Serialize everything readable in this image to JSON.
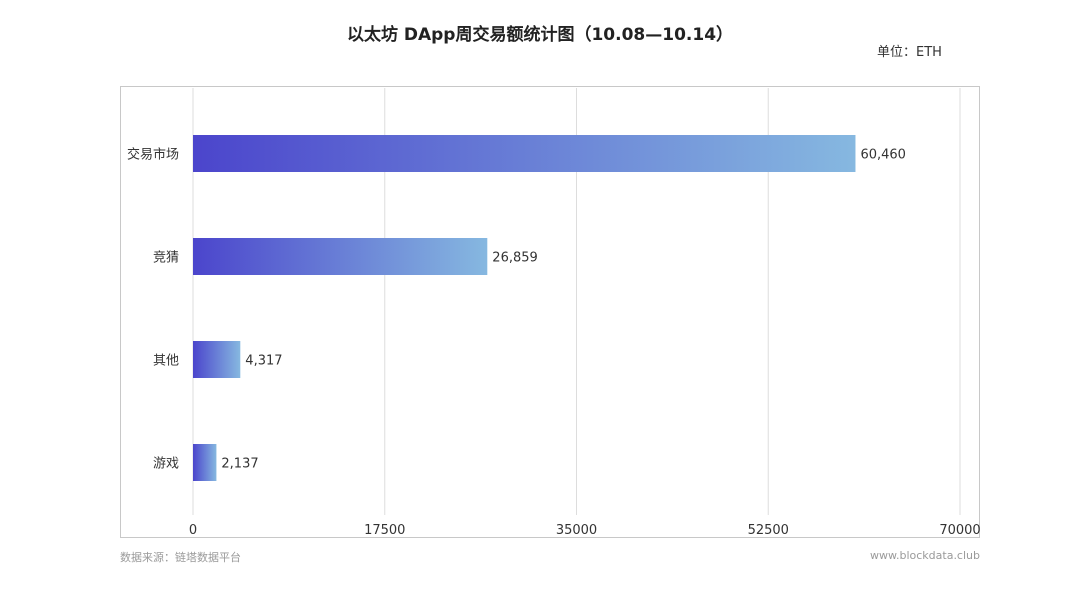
{
  "title": "以太坊 DApp周交易额统计图（10.08—10.14）",
  "unit": "单位：ETH",
  "footer": {
    "source": "数据来源：链塔数据平台",
    "site": "www.blockdata.club"
  },
  "colors": {
    "bar_start": "#4b45cc",
    "bar_end": "#86b8e0",
    "grid": "#dddddd",
    "frame": "#c8c8c8"
  },
  "chart_data": {
    "type": "bar",
    "orientation": "horizontal",
    "title": "以太坊 DApp周交易额统计图（10.08—10.14）",
    "categories": [
      "交易市场",
      "竞猜",
      "其他",
      "游戏"
    ],
    "values": [
      60460,
      26859,
      4317,
      2137
    ],
    "value_labels": [
      "60,460",
      "26,859",
      "4,317",
      "2,137"
    ],
    "xlim": [
      0,
      70000
    ],
    "x_ticks": [
      0,
      17500,
      35000,
      52500,
      70000
    ],
    "x_tick_labels": [
      "0",
      "17500",
      "35000",
      "52500",
      "70000"
    ],
    "grid": true,
    "legend": "none"
  }
}
